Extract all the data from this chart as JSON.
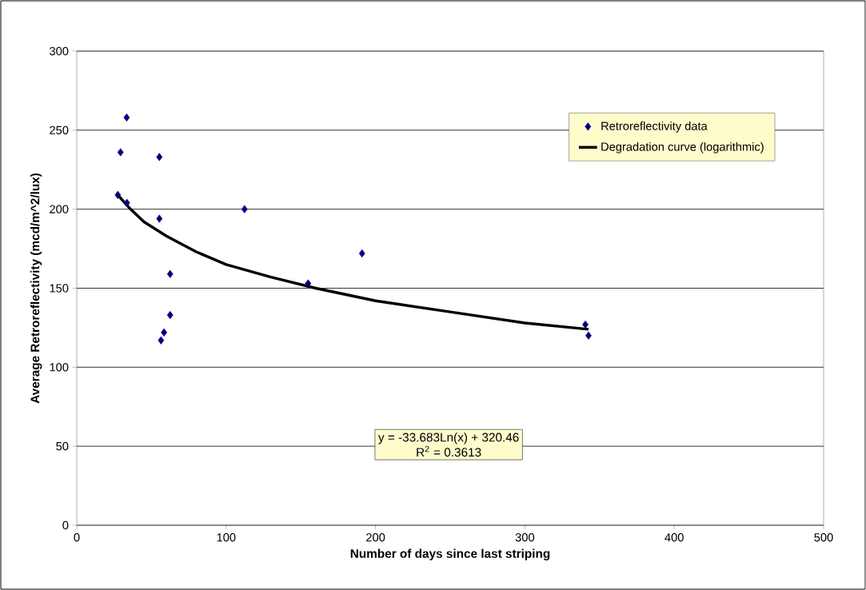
{
  "chart_data": {
    "type": "scatter",
    "xlabel": "Number of days since last striping",
    "ylabel": "Average Retroreflectivity (mcd/m^2/lux)",
    "xlim": [
      0,
      500
    ],
    "xticks": [
      0,
      100,
      200,
      300,
      400,
      500
    ],
    "ylim": [
      0,
      300
    ],
    "yticks": [
      0,
      50,
      100,
      150,
      200,
      250,
      300
    ],
    "grid": "y",
    "legend": "top right",
    "series": [
      {
        "name": "Retroreflectivity data",
        "marker": "diamond",
        "color": "#000080",
        "x": [
          33.4,
          29.3,
          55.3,
          27.5,
          33.6,
          55.3,
          62.5,
          62.5,
          58.4,
          56.4,
          112.3,
          191,
          154.9,
          340.5,
          342.6
        ],
        "values": [
          258,
          236,
          233,
          209,
          204,
          194,
          159,
          133,
          122,
          117,
          200,
          172,
          153,
          127,
          120
        ]
      },
      {
        "name": "Degradation curve (logarithmic)",
        "type": "line",
        "marker": "none",
        "color": "#000000",
        "x": [
          27.5,
          35,
          45,
          60,
          80,
          100,
          130,
          160,
          200,
          250,
          300,
          342.6
        ],
        "values": [
          209,
          201,
          192,
          183,
          173,
          165,
          157,
          150,
          142,
          135,
          128,
          124
        ]
      }
    ],
    "annotations": [
      "y = -33.683Ln(x) + 320.46",
      "R$^{2}$ = 0.3613"
    ]
  }
}
